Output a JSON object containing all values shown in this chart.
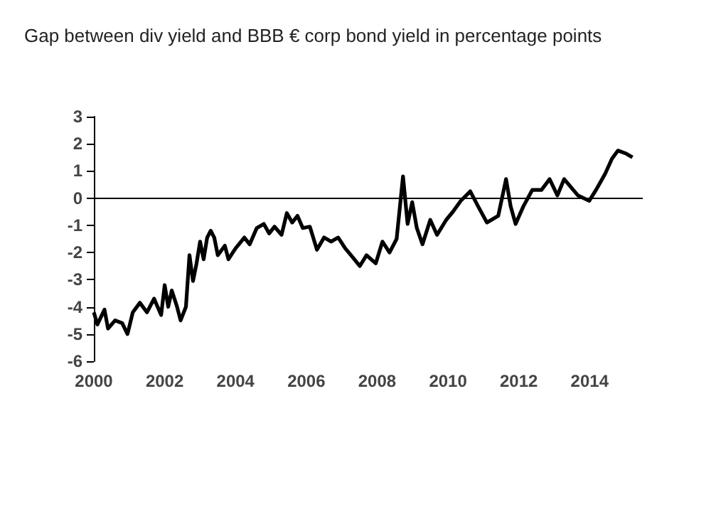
{
  "chart_data": {
    "type": "line",
    "title": "Gap between div yield and BBB € corp bond yield in percentage points",
    "x": [
      2000,
      2000.1,
      2000.3,
      2000.4,
      2000.6,
      2000.8,
      2000.95,
      2001.1,
      2001.3,
      2001.5,
      2001.7,
      2001.9,
      2002,
      2002.1,
      2002.2,
      2002.35,
      2002.45,
      2002.6,
      2002.7,
      2002.8,
      2002.9,
      2003,
      2003.1,
      2003.2,
      2003.3,
      2003.4,
      2003.5,
      2003.7,
      2003.8,
      2004,
      2004.25,
      2004.4,
      2004.6,
      2004.8,
      2004.95,
      2005.1,
      2005.3,
      2005.45,
      2005.6,
      2005.75,
      2005.9,
      2006.1,
      2006.3,
      2006.5,
      2006.7,
      2006.9,
      2007.1,
      2007.26,
      2007.51,
      2007.7,
      2007.96,
      2008.15,
      2008.35,
      2008.55,
      2008.73,
      2008.86,
      2008.99,
      2009.12,
      2009.28,
      2009.5,
      2009.69,
      2009.95,
      2010.14,
      2010.36,
      2010.63,
      2010.85,
      2011.1,
      2011.42,
      2011.64,
      2011.77,
      2011.91,
      2012.13,
      2012.38,
      2012.64,
      2012.87,
      2013.09,
      2013.28,
      2013.67,
      2013.99,
      2014.18,
      2014.44,
      2014.63,
      2014.8,
      2015.01,
      2015.21
    ],
    "series": [
      {
        "color": "#000000",
        "values": [
          -4.2,
          -4.65,
          -4.1,
          -4.8,
          -4.5,
          -4.6,
          -5.0,
          -4.2,
          -3.85,
          -4.2,
          -3.7,
          -4.3,
          -3.2,
          -4.0,
          -3.4,
          -4.0,
          -4.5,
          -4.0,
          -2.1,
          -3.05,
          -2.4,
          -1.6,
          -2.25,
          -1.45,
          -1.2,
          -1.45,
          -2.1,
          -1.75,
          -2.25,
          -1.85,
          -1.45,
          -1.7,
          -1.1,
          -0.95,
          -1.3,
          -1.05,
          -1.35,
          -0.55,
          -0.9,
          -0.65,
          -1.1,
          -1.05,
          -1.9,
          -1.45,
          -1.6,
          -1.45,
          -1.85,
          -2.1,
          -2.5,
          -2.1,
          -2.4,
          -1.6,
          -2.0,
          -1.5,
          0.8,
          -0.95,
          -0.15,
          -1.1,
          -1.7,
          -0.8,
          -1.35,
          -0.8,
          -0.5,
          -0.1,
          0.25,
          -0.3,
          -0.9,
          -0.65,
          0.7,
          -0.3,
          -0.95,
          -0.3,
          0.3,
          0.3,
          0.7,
          0.1,
          0.7,
          0.1,
          -0.1,
          0.3,
          0.9,
          1.45,
          1.75,
          1.65,
          1.5
        ]
      }
    ],
    "xlim": [
      2000,
      2015.5
    ],
    "xticks": [
      2000,
      2002,
      2004,
      2006,
      2008,
      2010,
      2012,
      2014
    ],
    "ylim": [
      -6,
      3
    ],
    "yticks": [
      -6,
      -5,
      -4,
      -3,
      -2,
      -1,
      0,
      1,
      2,
      3
    ],
    "ref_lines": [
      {
        "axis": "y",
        "value": 0,
        "color": "#000000"
      }
    ],
    "grid": false,
    "marker": "none",
    "line_style": "solid"
  }
}
